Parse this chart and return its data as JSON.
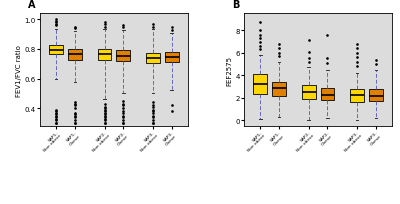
{
  "panel_A": {
    "title": "A",
    "ylabel": "FEV1/FVC ratio",
    "ylim": [
      0.28,
      1.04
    ],
    "yticks": [
      0.4,
      0.6,
      0.8,
      1.0
    ],
    "groups": [
      {
        "label": "SAP1-Non obese",
        "color": "#FFD700",
        "median": 0.795,
        "q1": 0.765,
        "q3": 0.825,
        "whislo": 0.6,
        "whishi": 0.935,
        "fliers_lo": [
          0.3,
          0.33,
          0.35,
          0.37,
          0.38,
          0.3,
          0.32,
          0.34,
          0.36,
          0.39
        ],
        "fliers_hi": [
          0.96,
          0.98,
          1.0,
          0.97,
          0.99
        ]
      },
      {
        "label": "SAP1-Obese",
        "color": "#E08000",
        "median": 0.765,
        "q1": 0.728,
        "q3": 0.798,
        "whislo": 0.58,
        "whishi": 0.92,
        "fliers_lo": [
          0.3,
          0.35,
          0.4,
          0.42,
          0.43,
          0.44,
          0.3,
          0.32,
          0.34,
          0.36,
          0.37
        ],
        "fliers_hi": [
          0.94,
          0.95
        ]
      },
      {
        "label": "SAP2-Non obese",
        "color": "#FFD700",
        "median": 0.763,
        "q1": 0.728,
        "q3": 0.798,
        "whislo": 0.46,
        "whishi": 0.935,
        "fliers_lo": [
          0.3,
          0.33,
          0.35,
          0.37,
          0.38,
          0.4,
          0.3,
          0.32,
          0.34,
          0.36,
          0.39,
          0.41,
          0.43
        ],
        "fliers_hi": [
          0.95,
          0.97,
          0.98
        ]
      },
      {
        "label": "SAP2-Obese",
        "color": "#E08000",
        "median": 0.755,
        "q1": 0.718,
        "q3": 0.79,
        "whislo": 0.5,
        "whishi": 0.93,
        "fliers_lo": [
          0.3,
          0.34,
          0.38,
          0.42,
          0.3,
          0.32,
          0.35,
          0.37,
          0.4,
          0.43,
          0.45
        ],
        "fliers_hi": [
          0.95,
          0.96
        ]
      },
      {
        "label": "SAP3-Non obese",
        "color": "#FFD700",
        "median": 0.74,
        "q1": 0.703,
        "q3": 0.773,
        "whislo": 0.5,
        "whishi": 0.935,
        "fliers_lo": [
          0.3,
          0.34,
          0.38,
          0.42,
          0.3,
          0.32,
          0.35,
          0.37,
          0.39,
          0.41,
          0.44
        ],
        "fliers_hi": [
          0.95,
          0.97
        ]
      },
      {
        "label": "SAP3-Obese",
        "color": "#E08000",
        "median": 0.748,
        "q1": 0.715,
        "q3": 0.78,
        "whislo": 0.52,
        "whishi": 0.91,
        "fliers_lo": [
          0.38,
          0.42
        ],
        "fliers_hi": [
          0.93,
          0.95
        ]
      }
    ]
  },
  "panel_B": {
    "title": "B",
    "ylabel": "FEF2575",
    "ylim": [
      -0.5,
      9.5
    ],
    "yticks": [
      0,
      2,
      4,
      6,
      8
    ],
    "groups": [
      {
        "label": "SAP1-Non obese",
        "color": "#FFD700",
        "median": 3.25,
        "q1": 2.35,
        "q3": 4.1,
        "whislo": 0.1,
        "whishi": 5.85,
        "fliers_lo": [],
        "fliers_hi": [
          6.3,
          6.6,
          7.0,
          7.3,
          7.6,
          8.0,
          8.7
        ]
      },
      {
        "label": "SAP1-Obese",
        "color": "#E08000",
        "median": 2.85,
        "q1": 2.18,
        "q3": 3.45,
        "whislo": 0.28,
        "whishi": 5.15,
        "fliers_lo": [],
        "fliers_hi": [
          5.7,
          6.0,
          6.4,
          6.8
        ]
      },
      {
        "label": "SAP2-Non obese",
        "color": "#FFD700",
        "median": 2.55,
        "q1": 1.92,
        "q3": 3.12,
        "whislo": 0.08,
        "whishi": 4.75,
        "fliers_lo": [],
        "fliers_hi": [
          5.2,
          5.5,
          6.1,
          7.1
        ]
      },
      {
        "label": "SAP2-Obese",
        "color": "#E08000",
        "median": 2.28,
        "q1": 1.78,
        "q3": 2.88,
        "whislo": 0.18,
        "whishi": 4.5,
        "fliers_lo": [],
        "fliers_hi": [
          5.1,
          5.5,
          7.6
        ]
      },
      {
        "label": "SAP3-Non obese",
        "color": "#FFD700",
        "median": 2.22,
        "q1": 1.62,
        "q3": 2.78,
        "whislo": 0.03,
        "whishi": 4.22,
        "fliers_lo": [],
        "fliers_hi": [
          4.8,
          5.2,
          5.6,
          6.0,
          6.4,
          6.8
        ]
      },
      {
        "label": "SAP3-Obese",
        "color": "#E08000",
        "median": 2.18,
        "q1": 1.7,
        "q3": 2.82,
        "whislo": 0.22,
        "whishi": 4.48,
        "fliers_lo": [],
        "fliers_hi": [
          5.0,
          5.4
        ]
      }
    ]
  },
  "bg_color": "#DCDCDC",
  "box_width": 0.38,
  "flier_size": 1.8,
  "whisker_color": "#6666BB",
  "cap_color": "#333333"
}
